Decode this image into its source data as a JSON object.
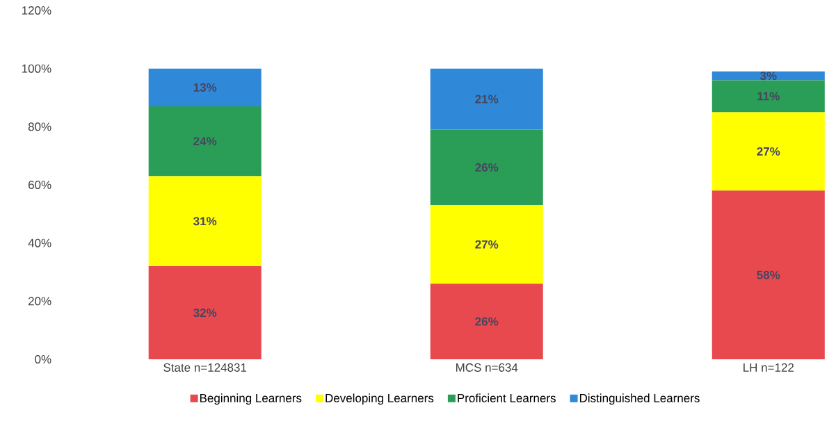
{
  "chart_data": {
    "type": "bar",
    "stacked": true,
    "categories": [
      "State n=124831",
      "MCS n=634",
      "LH n=122"
    ],
    "series": [
      {
        "name": "Beginning Learners",
        "color": "#e8494f",
        "values": [
          32,
          26,
          58
        ],
        "value_labels": [
          "32%",
          "26%",
          "58%"
        ]
      },
      {
        "name": "Developing Learners",
        "color": "#ffff00",
        "values": [
          31,
          27,
          27
        ],
        "value_labels": [
          "31%",
          "27%",
          "27%"
        ]
      },
      {
        "name": "Proficient Learners",
        "color": "#2a9d57",
        "values": [
          24,
          26,
          11
        ],
        "value_labels": [
          "24%",
          "26%",
          "11%"
        ]
      },
      {
        "name": "Distinguished Learners",
        "color": "#2f88d8",
        "values": [
          13,
          21,
          3
        ],
        "value_labels": [
          "13%",
          "21%",
          "3%"
        ]
      }
    ],
    "ylim": [
      0,
      120
    ],
    "yticks": [
      {
        "value": 0,
        "label": "0%"
      },
      {
        "value": 20,
        "label": "20%"
      },
      {
        "value": 40,
        "label": "40%"
      },
      {
        "value": 60,
        "label": "60%"
      },
      {
        "value": 80,
        "label": "80%"
      },
      {
        "value": 100,
        "label": "100%"
      },
      {
        "value": 120,
        "label": "120%"
      }
    ],
    "legend": "bottom",
    "grid": false
  }
}
